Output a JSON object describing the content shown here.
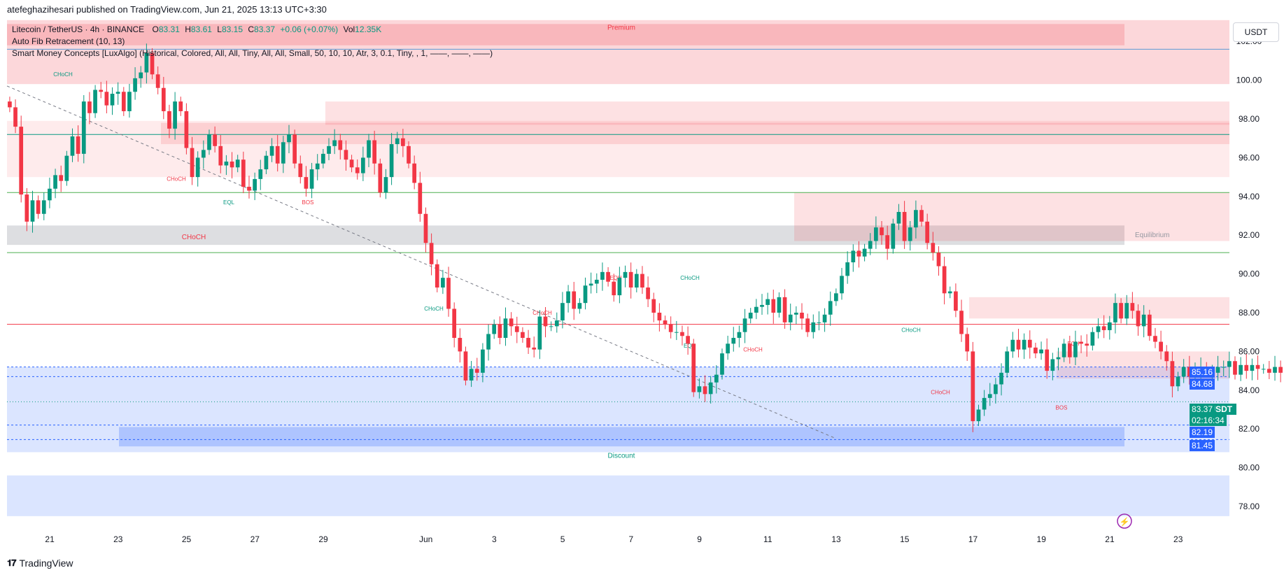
{
  "publisher": "atefeghazihesari published on TradingView.com, Jun 21, 2025 13:13 UTC+3:30",
  "legend": {
    "symbol": "Litecoin / TetherUS · 4h · BINANCE",
    "o_label": "O",
    "o": "83.31",
    "h_label": "H",
    "h": "83.61",
    "l_label": "L",
    "l": "83.15",
    "c_label": "C",
    "c": "83.37",
    "change": "+0.06 (+0.07%)",
    "vol_label": "Vol",
    "vol": "12.35K",
    "indicator1": "Auto Fib Retracement (10, 13)",
    "indicator2": "Smart Money Concepts [LuxAlgo] (Historical, Colored, All, All, Tiny, All, All, Small, 50, 10, 10, Atr, 3, 0.1, Tiny, , 1, ——, ——, ——)"
  },
  "currency": "USDT",
  "footer": "TradingView",
  "price_tags": {
    "top": "85.16",
    "second": "84.68",
    "symbol": "LTCUSDT",
    "last": "83.37",
    "countdown": "02:16:34",
    "low1": "82.19",
    "low2": "81.45"
  },
  "colors": {
    "up": "#089981",
    "down": "#f23645",
    "premium": "#f23645",
    "discount": "#2962ff",
    "equilibrium": "#787b86",
    "blue_tag": "#2962ff",
    "green_tag": "#089981"
  },
  "zone_labels": {
    "premium": "Premium",
    "equilibrium": "Equilibrium",
    "discount": "Discount"
  },
  "structure_labels": [
    "CHoCH",
    "CHoCH",
    "EQL",
    "BOS",
    "CHoCH",
    "CHoCH",
    "CHoCH",
    "EQH",
    "CHoCH",
    "EQL",
    "CHoCH",
    "CHoCH",
    "CHoCH",
    "EQH",
    "BOS"
  ],
  "chart_data": {
    "type": "candlestick",
    "title": "Litecoin / TetherUS · 4h · BINANCE",
    "y_ticks": [
      102,
      100,
      98,
      96,
      94,
      92,
      90,
      88,
      86,
      84,
      82,
      80,
      78
    ],
    "ylim": [
      76.7,
      103.2
    ],
    "x_ticks": [
      "21",
      "23",
      "25",
      "27",
      "29",
      "Jun",
      "3",
      "5",
      "7",
      "9",
      "11",
      "13",
      "15",
      "17",
      "19",
      "21",
      "23"
    ],
    "x_tick_days": [
      21,
      23,
      25,
      27,
      29,
      32,
      34,
      36,
      38,
      40,
      42,
      44,
      46,
      48,
      50,
      52,
      54
    ],
    "xlim_days": [
      19.75,
      55.5
    ],
    "grid": false,
    "candles_day_start": 19.83,
    "candle_interval_hours": 4,
    "closes": [
      98.6,
      97.6,
      94.1,
      92.7,
      93.8,
      93.1,
      93.8,
      94.4,
      95.1,
      94.8,
      96.1,
      97.1,
      96.2,
      98.9,
      98.3,
      99.5,
      99.4,
      98.7,
      99.3,
      99.4,
      98.4,
      99.4,
      100.1,
      100.4,
      101.4,
      100.3,
      99.6,
      98.4,
      97.5,
      98.9,
      98.4,
      96.5,
      95.0,
      96.0,
      96.4,
      97.2,
      96.6,
      95.6,
      95.8,
      95.5,
      95.9,
      94.5,
      94.3,
      94.9,
      95.4,
      96.1,
      96.6,
      95.7,
      96.8,
      97.2,
      95.7,
      95.0,
      94.4,
      95.4,
      95.7,
      96.2,
      96.6,
      96.9,
      96.4,
      95.9,
      95.5,
      95.2,
      96.0,
      96.9,
      95.7,
      94.2,
      95.0,
      96.7,
      97.0,
      96.6,
      95.7,
      94.7,
      93.1,
      91.6,
      90.5,
      89.3,
      89.8,
      88.2,
      86.7,
      86.0,
      84.5,
      85.1,
      84.9,
      86.1,
      86.9,
      87.4,
      86.7,
      87.7,
      87.3,
      87.0,
      86.7,
      86.2,
      86.1,
      87.8,
      87.3,
      87.3,
      87.6,
      88.5,
      89.1,
      88.2,
      88.5,
      89.4,
      89.5,
      89.7,
      90.1,
      89.6,
      88.9,
      89.8,
      90.1,
      89.3,
      90.0,
      89.3,
      88.7,
      88.0,
      87.6,
      87.4,
      87.0,
      87.0,
      86.8,
      86.4,
      83.9,
      84.2,
      83.8,
      84.4,
      84.8,
      85.9,
      86.4,
      86.7,
      87.0,
      87.7,
      88.0,
      88.3,
      88.4,
      88.7,
      88.0,
      88.8,
      87.5,
      87.9,
      88.0,
      87.7,
      87.0,
      87.5,
      87.5,
      87.9,
      88.6,
      89.0,
      89.9,
      90.6,
      91.2,
      90.9,
      91.3,
      91.7,
      92.4,
      92.0,
      91.3,
      92.6,
      93.2,
      91.7,
      92.4,
      93.3,
      92.7,
      91.6,
      91.1,
      90.4,
      89.0,
      89.1,
      88.1,
      86.9,
      86.0,
      82.4,
      83.0,
      83.6,
      83.8,
      84.3,
      84.9,
      86.0,
      86.6,
      86.1,
      86.6,
      86.2,
      85.9,
      86.1,
      85.0,
      85.6,
      85.7,
      86.4,
      85.7,
      86.5,
      86.4,
      86.3,
      87.0,
      87.3,
      87.1,
      87.5,
      88.5,
      87.7,
      88.5,
      88.1,
      87.3,
      87.9,
      86.8,
      86.5,
      86.0,
      85.5,
      84.2,
      84.7,
      85.2,
      84.7,
      85.1,
      85.2,
      84.9,
      84.9,
      85.2,
      85.2,
      85.5,
      84.8,
      85.3,
      85.0,
      85.3,
      85.1,
      85.1,
      84.9,
      85.2,
      84.9,
      85.2,
      85.6,
      83.7,
      82.1,
      83.0,
      83.2,
      83.3,
      83.4
    ]
  }
}
